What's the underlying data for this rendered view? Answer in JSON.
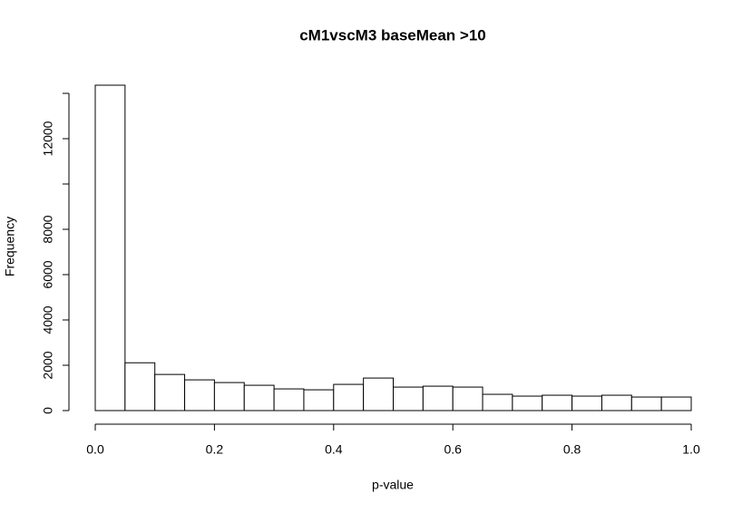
{
  "chart_data": {
    "type": "histogram",
    "title": "cM1vscM3 baseMean >10",
    "x_label": "p-value",
    "y_label": "Frequency",
    "bins": [
      0,
      0.05,
      0.1,
      0.15,
      0.2,
      0.25,
      0.3,
      0.35,
      0.4,
      0.45,
      0.5,
      0.55,
      0.6,
      0.65,
      0.7,
      0.75,
      0.8,
      0.85,
      0.9,
      0.95,
      1.0
    ],
    "values": [
      14360,
      2110,
      1595,
      1356,
      1237,
      1117,
      957,
      917,
      1157,
      1436,
      1037,
      1077,
      1037,
      718,
      638,
      678,
      638,
      678,
      598,
      598
    ],
    "color": "#ffffff",
    "edge_color": "#000000",
    "xlim": [
      0,
      1
    ],
    "xticks": [
      {
        "value": 0,
        "label": "0.0"
      },
      0.2,
      0.4,
      0.6,
      0.8,
      {
        "value": 1,
        "label": "1.0"
      }
    ],
    "ylim": [
      0,
      14400
    ],
    "yticks": [
      0,
      2000,
      4000,
      6000,
      8000,
      {
        "value": 10000,
        "label": null
      },
      12000,
      {
        "value": 14000,
        "label": null
      }
    ],
    "grid": false
  }
}
